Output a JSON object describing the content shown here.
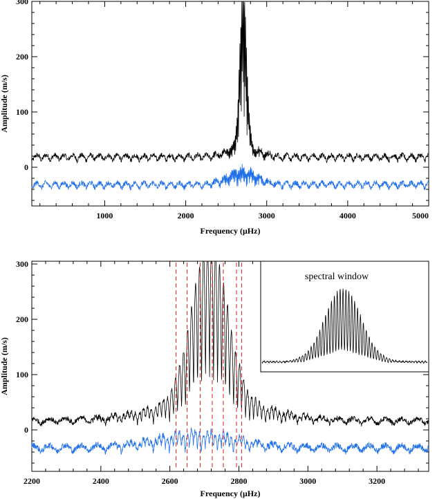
{
  "colors": {
    "observed": "#000000",
    "residual": "#1f6fe8",
    "mode_markers": "#e03030",
    "axes": "#000000"
  },
  "chart_data": [
    {
      "id": "top",
      "type": "line",
      "title": "",
      "xlabel": "Frequency (μHz)",
      "ylabel": "Amplitude (m/s)",
      "xlim": [
        100,
        5000
      ],
      "ylim": [
        -70,
        300
      ],
      "xticks": [
        1000,
        2000,
        3000,
        4000,
        5000
      ],
      "yticks": [
        0,
        100,
        200,
        300
      ],
      "grid": false,
      "series": [
        {
          "color": "#000000",
          "baseline": 12,
          "noise_amp": 10,
          "ripple_period": 110,
          "peak": {
            "center": 2710,
            "height": 290,
            "width": 42,
            "wing_width": 180,
            "wing_height": 25
          }
        },
        {
          "color": "#1f6fe8",
          "baseline": -38,
          "noise_amp": 10,
          "ripple_period": 110,
          "bump": {
            "center": 2700,
            "height": 30,
            "width": 180
          }
        }
      ]
    },
    {
      "id": "bottom",
      "type": "line",
      "title": "",
      "xlabel": "Frequency (μHz)",
      "ylabel": "Amplitude (m/s)",
      "xlim": [
        2200,
        3350
      ],
      "ylim": [
        -75,
        305
      ],
      "xticks": [
        2200,
        2400,
        2600,
        2800,
        3000,
        3200
      ],
      "yticks": [
        0,
        100,
        200,
        300
      ],
      "grid": false,
      "mode_lines": [
        2618,
        2650,
        2688,
        2723,
        2755,
        2793,
        2808
      ],
      "fringe_period": 11.6,
      "series": [
        {
          "color": "#000000",
          "baseline": 10,
          "noise_amp": 10,
          "peak": {
            "center": 2715,
            "height": 290,
            "width": 50,
            "wing_width": 160,
            "wing_height": 40
          }
        },
        {
          "color": "#1f6fe8",
          "baseline": -40,
          "noise_amp": 12,
          "bump": {
            "center": 2680,
            "height": 28,
            "width": 120
          }
        }
      ]
    },
    {
      "id": "inset",
      "type": "line",
      "title": "spectral window",
      "xlabel": "",
      "ylabel": "",
      "grid": false,
      "series": [
        {
          "color": "#000000",
          "peak_height": 1.0,
          "fringe_period": 11.6,
          "envelope_width": 45,
          "noise_level": 0.04
        }
      ]
    }
  ]
}
